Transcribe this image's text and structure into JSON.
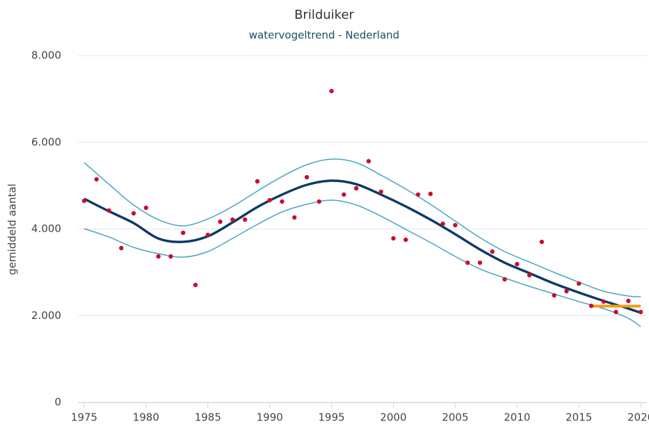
{
  "chart_data": {
    "type": "line",
    "title": "Brilduiker",
    "subtitle": "watervogeltrend - Nederland",
    "y_label": "gemiddeld aantal",
    "xlim": [
      1975,
      2020.5
    ],
    "xticks": [
      1975,
      1980,
      1985,
      1990,
      1995,
      2000,
      2005,
      2010,
      2015,
      2020
    ],
    "ylim": [
      0,
      8000
    ],
    "yticks": [
      0,
      {
        "value": 2000,
        "label": "2.000"
      },
      {
        "value": 4000,
        "label": "4.000"
      },
      {
        "value": 6000,
        "label": "6.000"
      },
      {
        "value": 8000,
        "label": "8.000"
      }
    ],
    "grid": true,
    "series": [
      {
        "style": "band",
        "color": "#4aa3c0",
        "x": [
          1975,
          1977,
          1979,
          1981,
          1983,
          1985,
          1987,
          1989,
          1991,
          1993,
          1995,
          1997,
          1999,
          2001,
          2003,
          2005,
          2007,
          2009,
          2011,
          2013,
          2015,
          2017,
          2019,
          2020
        ],
        "values": [
          5532,
          5034,
          4553,
          4216,
          4072,
          4232,
          4521,
          4874,
          5210,
          5483,
          5611,
          5531,
          5242,
          4922,
          4569,
          4184,
          3800,
          3479,
          3238,
          2998,
          2773,
          2565,
          2453,
          2437
        ]
      },
      {
        "style": "band",
        "color": "#4aa3c0",
        "x": [
          1975,
          1977,
          1979,
          1981,
          1983,
          1985,
          1987,
          1989,
          1991,
          1993,
          1995,
          1997,
          1999,
          2001,
          2003,
          2005,
          2007,
          2009,
          2011,
          2013,
          2015,
          2017,
          2019,
          2020
        ],
        "values": [
          4008,
          3816,
          3575,
          3431,
          3351,
          3479,
          3784,
          4104,
          4393,
          4569,
          4665,
          4553,
          4296,
          3992,
          3687,
          3367,
          3078,
          2870,
          2677,
          2501,
          2325,
          2164,
          1939,
          1747
        ]
      },
      {
        "style": "trend",
        "color": "#0d3b66",
        "x": [
          1975,
          1977,
          1979,
          1981,
          1983,
          1985,
          1987,
          1989,
          1991,
          1993,
          1995,
          1997,
          1999,
          2001,
          2003,
          2005,
          2007,
          2009,
          2011,
          2013,
          2015,
          2017,
          2019,
          2020
        ],
        "values": [
          4697,
          4409,
          4136,
          3780,
          3703,
          3832,
          4152,
          4505,
          4793,
          5018,
          5114,
          5034,
          4793,
          4521,
          4216,
          3880,
          3527,
          3222,
          2982,
          2741,
          2533,
          2341,
          2164,
          2068
        ]
      },
      {
        "style": "reference",
        "color": "#f39c12",
        "x": [
          2016,
          2020
        ],
        "values": [
          2220,
          2220
        ]
      },
      {
        "style": "points",
        "color": "#c8102e",
        "x": [
          1975,
          1976,
          1977,
          1978,
          1979,
          1980,
          1981,
          1982,
          1983,
          1984,
          1985,
          1986,
          1987,
          1988,
          1989,
          1990,
          1991,
          1992,
          1993,
          1994,
          1995,
          1996,
          1997,
          1998,
          1999,
          2000,
          2001,
          2002,
          2003,
          2004,
          2005,
          2006,
          2007,
          2008,
          2009,
          2010,
          2011,
          2012,
          2013,
          2014,
          2015,
          2016,
          2017,
          2018,
          2019,
          2020
        ],
        "values": [
          4650,
          5146,
          4425,
          3560,
          4361,
          4489,
          3367,
          3367,
          3912,
          2709,
          3864,
          4168,
          4216,
          4216,
          5098,
          4665,
          4633,
          4265,
          5194,
          4633,
          7182,
          4793,
          4938,
          5563,
          4858,
          3784,
          3752,
          4793,
          4810,
          4120,
          4088,
          3222,
          3222,
          3479,
          2838,
          3190,
          2934,
          3703,
          2469,
          2565,
          2741,
          2228,
          2325,
          2084,
          2341,
          2084
        ]
      }
    ]
  }
}
